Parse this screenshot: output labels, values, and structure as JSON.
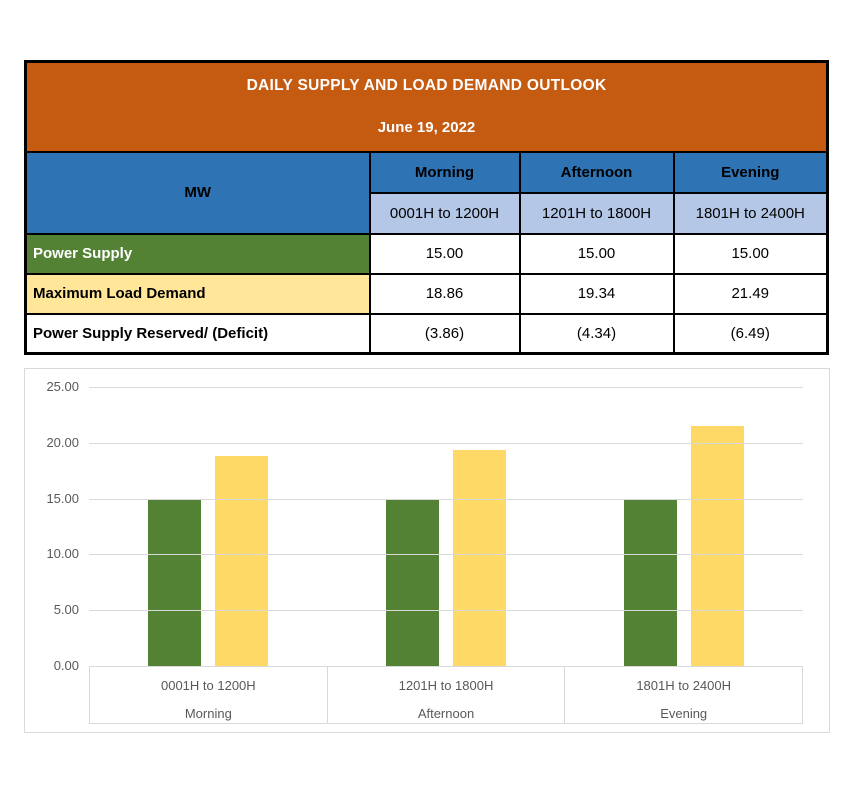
{
  "colors": {
    "title_bg": "#C55A11",
    "header_bg": "#2E74B5",
    "subheader_bg": "#B4C7E7",
    "supply_row_bg": "#548235",
    "demand_row_bg": "#FFE699",
    "chart_supply_bar": "#548235",
    "chart_demand_bar": "#FFD966",
    "chart_border": "#D9D9D9",
    "axis_text": "#595959"
  },
  "table": {
    "title": "DAILY SUPPLY AND LOAD DEMAND OUTLOOK",
    "date": "June 19, 2022",
    "unit_header": "MW",
    "columns": [
      {
        "period": "Morning",
        "time_range": "0001H to 1200H"
      },
      {
        "period": "Afternoon",
        "time_range": "1201H to 1800H"
      },
      {
        "period": "Evening",
        "time_range": "1801H to 2400H"
      }
    ],
    "rows": [
      {
        "label": "Power Supply",
        "values": [
          "15.00",
          "15.00",
          "15.00"
        ]
      },
      {
        "label": "Maximum Load Demand",
        "values": [
          "18.86",
          "19.34",
          "21.49"
        ]
      },
      {
        "label": "Power Supply Reserved/ (Deficit)",
        "values": [
          "(3.86)",
          "(4.34)",
          "(6.49)"
        ]
      }
    ]
  },
  "chart_data": {
    "type": "bar",
    "categories": [
      {
        "time_range": "0001H to 1200H",
        "period": "Morning"
      },
      {
        "time_range": "1201H to 1800H",
        "period": "Afternoon"
      },
      {
        "time_range": "1801H to 2400H",
        "period": "Evening"
      }
    ],
    "series": [
      {
        "name": "Power Supply",
        "color": "#548235",
        "values": [
          15.0,
          15.0,
          15.0
        ]
      },
      {
        "name": "Maximum Load Demand",
        "color": "#FFD966",
        "values": [
          18.86,
          19.34,
          21.49
        ]
      }
    ],
    "title": "",
    "xlabel": "",
    "ylabel": "",
    "ylim": [
      0,
      25
    ],
    "ytick_labels": [
      "25.00",
      "20.00",
      "15.00",
      "10.00",
      "5.00",
      "0.00"
    ],
    "grid": true,
    "legend": "none"
  }
}
